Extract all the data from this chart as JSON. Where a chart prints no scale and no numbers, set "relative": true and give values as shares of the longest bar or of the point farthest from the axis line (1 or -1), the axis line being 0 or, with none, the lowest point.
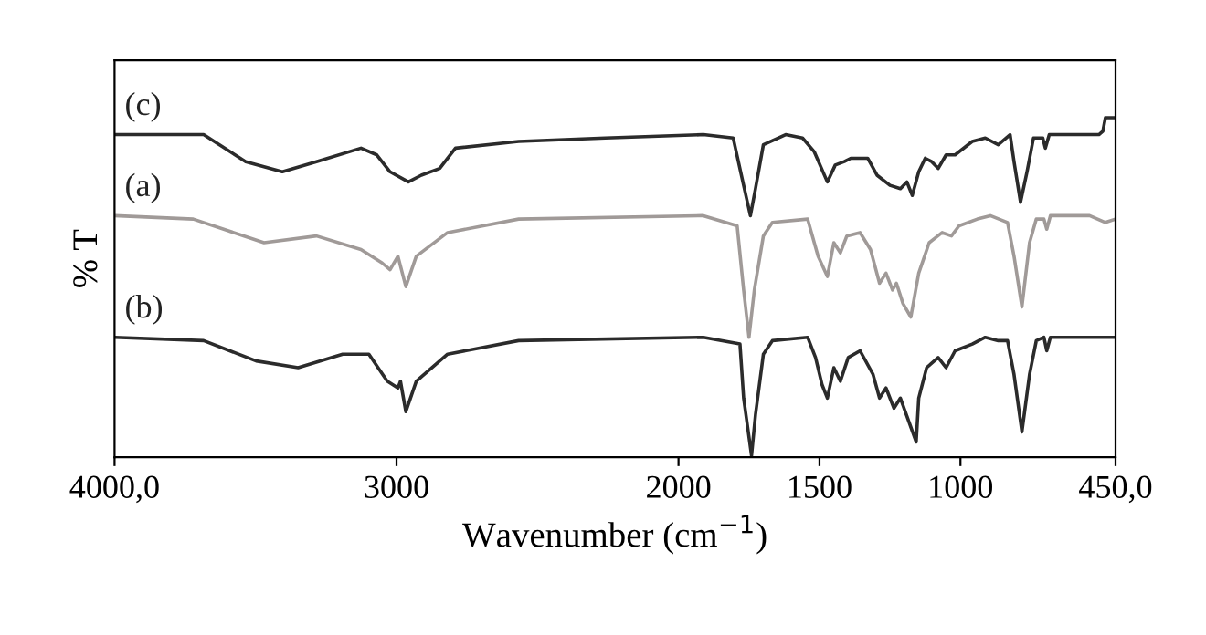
{
  "chart_data": {
    "type": "line",
    "relative": true,
    "xlabel": "Wavenumber (cm$^{−1}$)",
    "ylabel": "% T",
    "xlim": [
      4000,
      450
    ],
    "xticks": [
      {
        "value": 4000,
        "label": "4000,0"
      },
      3000,
      2000,
      1500,
      1000,
      {
        "value": 450,
        "label": "450,0"
      }
    ],
    "grid": false,
    "legend": false,
    "marker": "none",
    "line_style": "solid",
    "series": [
      {
        "name": "(c)",
        "color": "#2b2b2b",
        "x": [
          4000,
          3684,
          3535,
          3405,
          3284,
          3126,
          3070,
          3023,
          2958,
          2912,
          2847,
          2791,
          2567,
          2260,
          1912,
          1806,
          1769,
          1745,
          1727,
          1699,
          1620,
          1560,
          1519,
          1472,
          1444,
          1412,
          1389,
          1329,
          1296,
          1250,
          1213,
          1190,
          1171,
          1148,
          1125,
          1102,
          1079,
          1051,
          1019,
          958,
          912,
          866,
          824,
          810,
          787,
          764,
          741,
          708,
          699,
          685,
          509,
          495,
          486,
          450
        ],
        "values": [
          0.95,
          0.95,
          0.87,
          0.84,
          0.87,
          0.91,
          0.89,
          0.84,
          0.81,
          0.83,
          0.85,
          0.91,
          0.93,
          0.94,
          0.95,
          0.94,
          0.8,
          0.71,
          0.79,
          0.92,
          0.95,
          0.94,
          0.9,
          0.81,
          0.86,
          0.87,
          0.88,
          0.88,
          0.83,
          0.8,
          0.79,
          0.81,
          0.77,
          0.84,
          0.88,
          0.87,
          0.85,
          0.89,
          0.89,
          0.93,
          0.94,
          0.92,
          0.95,
          0.87,
          0.75,
          0.84,
          0.94,
          0.94,
          0.91,
          0.95,
          0.95,
          0.96,
          1.0,
          1.0
        ]
      },
      {
        "name": "(a)",
        "color": "#a09a98",
        "x": [
          4000,
          3721,
          3470,
          3284,
          3126,
          3051,
          3023,
          2995,
          2967,
          2930,
          2819,
          2567,
          1912,
          1792,
          1769,
          1750,
          1731,
          1699,
          1667,
          1542,
          1505,
          1472,
          1449,
          1426,
          1403,
          1356,
          1319,
          1287,
          1264,
          1241,
          1227,
          1204,
          1176,
          1148,
          1111,
          1065,
          1032,
          1005,
          940,
          894,
          833,
          810,
          782,
          755,
          731,
          704,
          694,
          681,
          542,
          486,
          450
        ],
        "values": [
          0.71,
          0.7,
          0.63,
          0.65,
          0.61,
          0.57,
          0.55,
          0.59,
          0.5,
          0.59,
          0.66,
          0.7,
          0.71,
          0.68,
          0.49,
          0.35,
          0.49,
          0.65,
          0.69,
          0.7,
          0.59,
          0.53,
          0.63,
          0.6,
          0.65,
          0.66,
          0.61,
          0.51,
          0.54,
          0.49,
          0.51,
          0.45,
          0.41,
          0.54,
          0.63,
          0.66,
          0.65,
          0.68,
          0.7,
          0.71,
          0.69,
          0.59,
          0.44,
          0.63,
          0.7,
          0.7,
          0.67,
          0.71,
          0.71,
          0.69,
          0.7
        ]
      },
      {
        "name": "(b)",
        "color": "#2b2b2b",
        "x": [
          4000,
          3684,
          3498,
          3349,
          3191,
          3098,
          3033,
          2995,
          2986,
          2967,
          2930,
          2819,
          2567,
          1912,
          1782,
          1769,
          1741,
          1727,
          1699,
          1667,
          1542,
          1514,
          1491,
          1472,
          1449,
          1426,
          1398,
          1356,
          1310,
          1287,
          1264,
          1236,
          1213,
          1157,
          1148,
          1120,
          1079,
          1051,
          1019,
          958,
          912,
          866,
          833,
          810,
          782,
          755,
          731,
          704,
          694,
          681,
          450
        ],
        "values": [
          0.35,
          0.34,
          0.28,
          0.26,
          0.3,
          0.3,
          0.22,
          0.2,
          0.22,
          0.13,
          0.22,
          0.3,
          0.34,
          0.35,
          0.33,
          0.17,
          0,
          0.12,
          0.3,
          0.34,
          0.35,
          0.29,
          0.21,
          0.17,
          0.26,
          0.22,
          0.29,
          0.31,
          0.24,
          0.17,
          0.2,
          0.14,
          0.17,
          0.04,
          0.17,
          0.26,
          0.29,
          0.26,
          0.31,
          0.33,
          0.35,
          0.34,
          0.34,
          0.24,
          0.07,
          0.24,
          0.34,
          0.35,
          0.31,
          0.35,
          0.35
        ]
      }
    ]
  }
}
